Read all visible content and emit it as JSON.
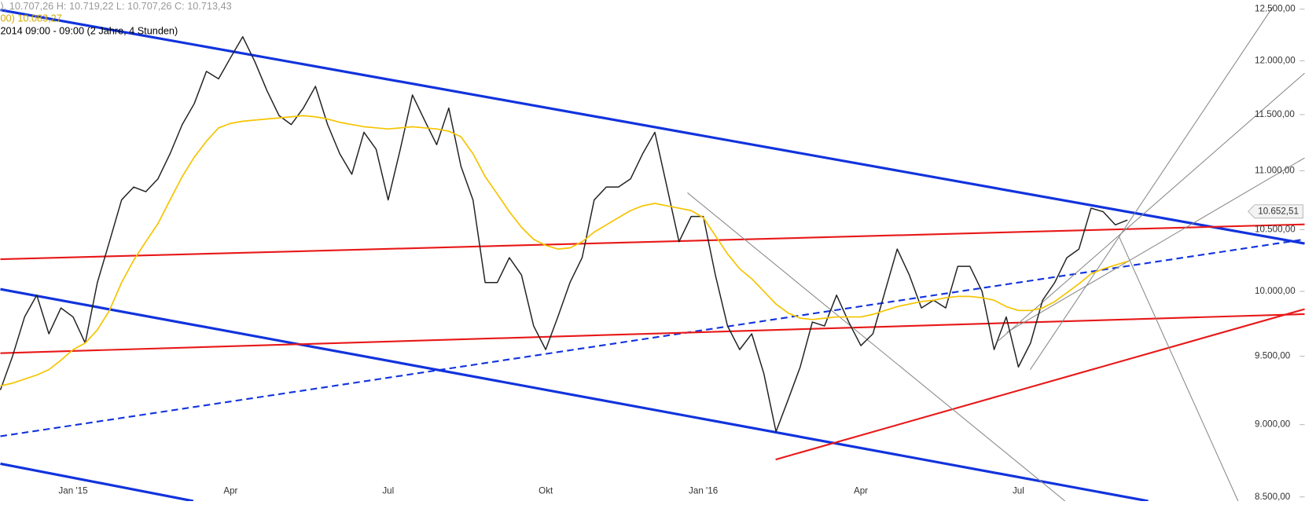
{
  "chart_data": {
    "type": "line",
    "log": true,
    "ohlc_text": "), 10.707,26  H: 10.719,22  L: 10.707,26  C: 10.713,43",
    "ma_text": "00)  10.083,27",
    "range_text": "2014 09:00 - 09:00 (2 Jahre, 4 Stunden)",
    "categories": [
      null,
      null,
      null,
      null,
      null,
      null,
      "Jan '15",
      null,
      null,
      null,
      null,
      null,
      null,
      null,
      null,
      null,
      null,
      null,
      null,
      "Apr",
      null,
      null,
      null,
      null,
      null,
      null,
      null,
      null,
      null,
      null,
      null,
      null,
      "Jul",
      null,
      null,
      null,
      null,
      null,
      null,
      null,
      null,
      null,
      null,
      null,
      null,
      "Okt",
      null,
      null,
      null,
      null,
      null,
      null,
      null,
      null,
      null,
      null,
      null,
      null,
      "Jan '16",
      null,
      null,
      null,
      null,
      null,
      null,
      null,
      null,
      null,
      null,
      null,
      null,
      "Apr",
      null,
      null,
      null,
      null,
      null,
      null,
      null,
      null,
      null,
      null,
      null,
      null,
      "Jul",
      null,
      null,
      null,
      null,
      null,
      null,
      null,
      null,
      null
    ],
    "series": [
      {
        "color": "#222222",
        "values": [
          9250,
          9500,
          9800,
          9970,
          9670,
          9870,
          9800,
          9600,
          10070,
          10400,
          10750,
          10860,
          10820,
          10930,
          11150,
          11410,
          11600,
          11900,
          11830,
          12030,
          12230,
          11990,
          11720,
          11490,
          11410,
          11560,
          11760,
          11410,
          11150,
          10970,
          11340,
          11190,
          10750,
          11190,
          11680,
          11450,
          11230,
          11560,
          11040,
          10750,
          10070,
          10070,
          10270,
          10130,
          9730,
          9550,
          9800,
          10070,
          10270,
          10750,
          10860,
          10860,
          10930,
          11150,
          11340,
          10860,
          10400,
          10610,
          10610,
          10130,
          9730,
          9550,
          9670,
          9370,
          8950,
          9180,
          9420,
          9760,
          9730,
          9970,
          9760,
          9580,
          9670,
          10000,
          10340,
          10130,
          9870,
          9930,
          9870,
          10200,
          10200,
          10000,
          9550,
          9800,
          9420,
          9600,
          9930,
          10070,
          10270,
          10340,
          10680,
          10650,
          10540,
          10580
        ]
      },
      {
        "color": "#f5c400",
        "values": [
          9280,
          9300,
          9330,
          9360,
          9400,
          9470,
          9550,
          9600,
          9700,
          9850,
          10070,
          10250,
          10400,
          10550,
          10750,
          10950,
          11120,
          11260,
          11380,
          11420,
          11440,
          11450,
          11460,
          11470,
          11480,
          11490,
          11480,
          11460,
          11430,
          11410,
          11390,
          11380,
          11370,
          11380,
          11390,
          11380,
          11370,
          11350,
          11300,
          11150,
          10950,
          10800,
          10650,
          10520,
          10420,
          10370,
          10340,
          10350,
          10400,
          10480,
          10540,
          10600,
          10660,
          10700,
          10720,
          10700,
          10680,
          10660,
          10600,
          10450,
          10300,
          10180,
          10100,
          10000,
          9900,
          9830,
          9790,
          9780,
          9790,
          9800,
          9800,
          9800,
          9820,
          9850,
          9880,
          9900,
          9920,
          9930,
          9950,
          9960,
          9960,
          9950,
          9930,
          9880,
          9850,
          9850,
          9870,
          9920,
          9990,
          10060,
          10140,
          10180,
          10210,
          10240
        ]
      }
    ],
    "ylim": [
      8500,
      12500
    ],
    "yticks": [
      {
        "value": 8500,
        "label": "8.500,00"
      },
      {
        "value": 9000,
        "label": "9.000,00"
      },
      {
        "value": 9500,
        "label": "9.500,00"
      },
      {
        "value": 10000,
        "label": "10.000,00"
      },
      {
        "value": 10500,
        "label": "10.500,00"
      },
      {
        "value": 11000,
        "label": "11.000,00"
      },
      {
        "value": 11500,
        "label": "11.500,00"
      },
      {
        "value": 12000,
        "label": "12.000,00"
      },
      {
        "value": 12500,
        "label": "12.500,00"
      }
    ],
    "last_price": {
      "value": 10652.51,
      "label": "10.652,51"
    }
  }
}
